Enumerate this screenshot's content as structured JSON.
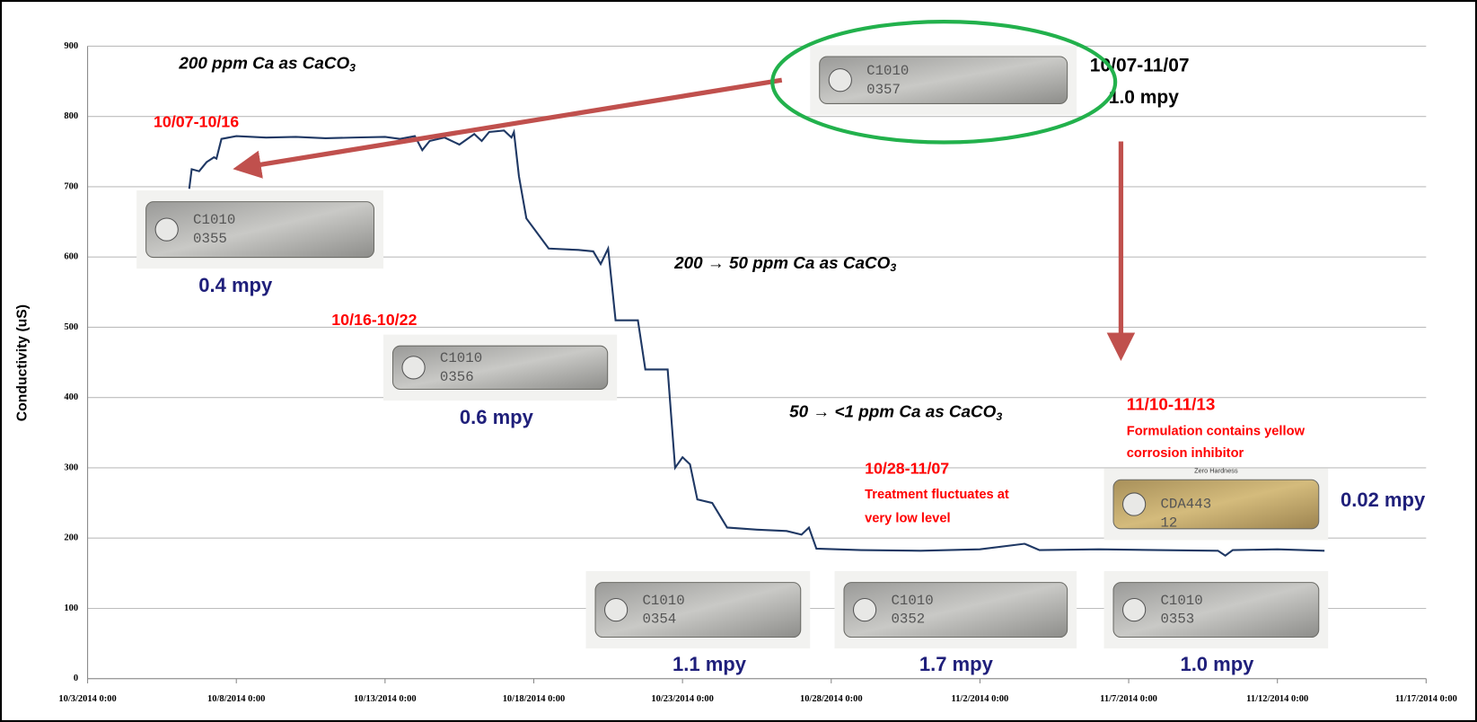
{
  "chart_data": {
    "type": "line",
    "y_label": "Conductivity (uS)",
    "xlim": [
      "2014-10-03 00:00",
      "2014-11-17 00:00"
    ],
    "xticks": [
      {
        "value": "2014-10-03 00:00",
        "label": "10/3/2014 0:00"
      },
      {
        "value": "2014-10-08 00:00",
        "label": "10/8/2014 0:00"
      },
      {
        "value": "2014-10-13 00:00",
        "label": "10/13/2014 0:00"
      },
      {
        "value": "2014-10-18 00:00",
        "label": "10/18/2014 0:00"
      },
      {
        "value": "2014-10-23 00:00",
        "label": "10/23/2014 0:00"
      },
      {
        "value": "2014-10-28 00:00",
        "label": "10/28/2014 0:00"
      },
      {
        "value": "2014-11-02 00:00",
        "label": "11/2/2014 0:00"
      },
      {
        "value": "2014-11-07 00:00",
        "label": "11/7/2014 0:00"
      },
      {
        "value": "2014-11-12 00:00",
        "label": "11/12/2014 0:00"
      },
      {
        "value": "2014-11-17 00:00",
        "label": "11/17/2014 0:00"
      }
    ],
    "ylim": [
      0,
      900
    ],
    "yticks": [
      0,
      100,
      200,
      300,
      400,
      500,
      600,
      700,
      800,
      900
    ],
    "grid": true,
    "x": [
      "2014-10-06 10:00",
      "2014-10-06 12:00",
      "2014-10-06 18:00",
      "2014-10-07 00:00",
      "2014-10-07 06:00",
      "2014-10-07 08:00",
      "2014-10-07 12:00",
      "2014-10-08 00:00",
      "2014-10-09 00:00",
      "2014-10-10 00:00",
      "2014-10-11 00:00",
      "2014-10-12 00:00",
      "2014-10-13 00:00",
      "2014-10-13 12:00",
      "2014-10-14 00:00",
      "2014-10-14 06:00",
      "2014-10-14 12:00",
      "2014-10-15 00:00",
      "2014-10-15 12:00",
      "2014-10-16 00:00",
      "2014-10-16 06:00",
      "2014-10-16 12:00",
      "2014-10-17 00:00",
      "2014-10-17 06:00",
      "2014-10-17 08:00",
      "2014-10-17 12:00",
      "2014-10-17 18:00",
      "2014-10-18 12:00",
      "2014-10-19 12:00",
      "2014-10-20 00:00",
      "2014-10-20 06:00",
      "2014-10-20 12:00",
      "2014-10-20 18:00",
      "2014-10-21 12:00",
      "2014-10-21 18:00",
      "2014-10-22 12:00",
      "2014-10-22 18:00",
      "2014-10-23 00:00",
      "2014-10-23 06:00",
      "2014-10-23 12:00",
      "2014-10-24 00:00",
      "2014-10-24 12:00",
      "2014-10-25 12:00",
      "2014-10-26 12:00",
      "2014-10-27 00:00",
      "2014-10-27 06:00",
      "2014-10-27 12:00",
      "2014-10-29 00:00",
      "2014-10-31 00:00",
      "2014-11-02 00:00",
      "2014-11-03 12:00",
      "2014-11-04 00:00",
      "2014-11-06 00:00",
      "2014-11-08 00:00",
      "2014-11-10 00:00",
      "2014-11-10 06:00",
      "2014-11-10 12:00",
      "2014-11-12 00:00",
      "2014-11-13 14:00"
    ],
    "series": [
      {
        "color": "#1f3864",
        "values": [
          697,
          725,
          722,
          735,
          742,
          740,
          768,
          772,
          770,
          771,
          769,
          770,
          771,
          768,
          772,
          752,
          765,
          770,
          760,
          775,
          765,
          778,
          780,
          770,
          778,
          715,
          655,
          612,
          610,
          608,
          590,
          612,
          510,
          510,
          440,
          440,
          300,
          315,
          305,
          255,
          250,
          215,
          212,
          210,
          205,
          215,
          185,
          183,
          182,
          184,
          192,
          183,
          184,
          183,
          182,
          175,
          183,
          184,
          182
        ]
      }
    ],
    "annotations": [
      {
        "text": "200 ppm Ca as CaCO",
        "sub": "3",
        "color": "#000000"
      },
      {
        "text": "10/07-10/16",
        "color": "#ff0000"
      },
      {
        "text": "10/16-10/22",
        "color": "#ff0000"
      },
      {
        "text": "200 → 50 ppm   Ca as CaCO",
        "sub": "3",
        "color": "#000000"
      },
      {
        "text": "50 → <1 ppm Ca as CaCO",
        "sub": "3",
        "color": "#000000"
      },
      {
        "text": "10/07-11/07",
        "color": "#000000"
      },
      {
        "text": "1.0 mpy",
        "color": "#000000"
      },
      {
        "text": "11/10-11/13",
        "color": "#ff0000"
      },
      {
        "text": "Formulation contains yellow",
        "color": "#ff0000"
      },
      {
        "text": "corrosion inhibitor",
        "color": "#ff0000"
      },
      {
        "text": "10/28-11/07",
        "color": "#ff0000"
      },
      {
        "text": "Treatment fluctuates at",
        "color": "#ff0000"
      },
      {
        "text": "very low level",
        "color": "#ff0000"
      }
    ],
    "coupons": [
      {
        "stamp": [
          "C1010",
          "0357"
        ]
      },
      {
        "stamp": [
          "C1010",
          "0355"
        ],
        "rate": "0.4 mpy"
      },
      {
        "stamp": [
          "C1010",
          "0356"
        ],
        "rate": "0.6 mpy"
      },
      {
        "stamp": [
          "Zero Hardness",
          "CDA443",
          "12"
        ],
        "rate": "0.02 mpy"
      },
      {
        "stamp": [
          "C1010",
          "0354"
        ],
        "rate": "1.1 mpy"
      },
      {
        "stamp": [
          "C1010",
          "0352"
        ],
        "rate": "1.7 mpy"
      },
      {
        "stamp": [
          "C1010",
          "0353"
        ],
        "rate": "1.0 mpy"
      }
    ]
  }
}
